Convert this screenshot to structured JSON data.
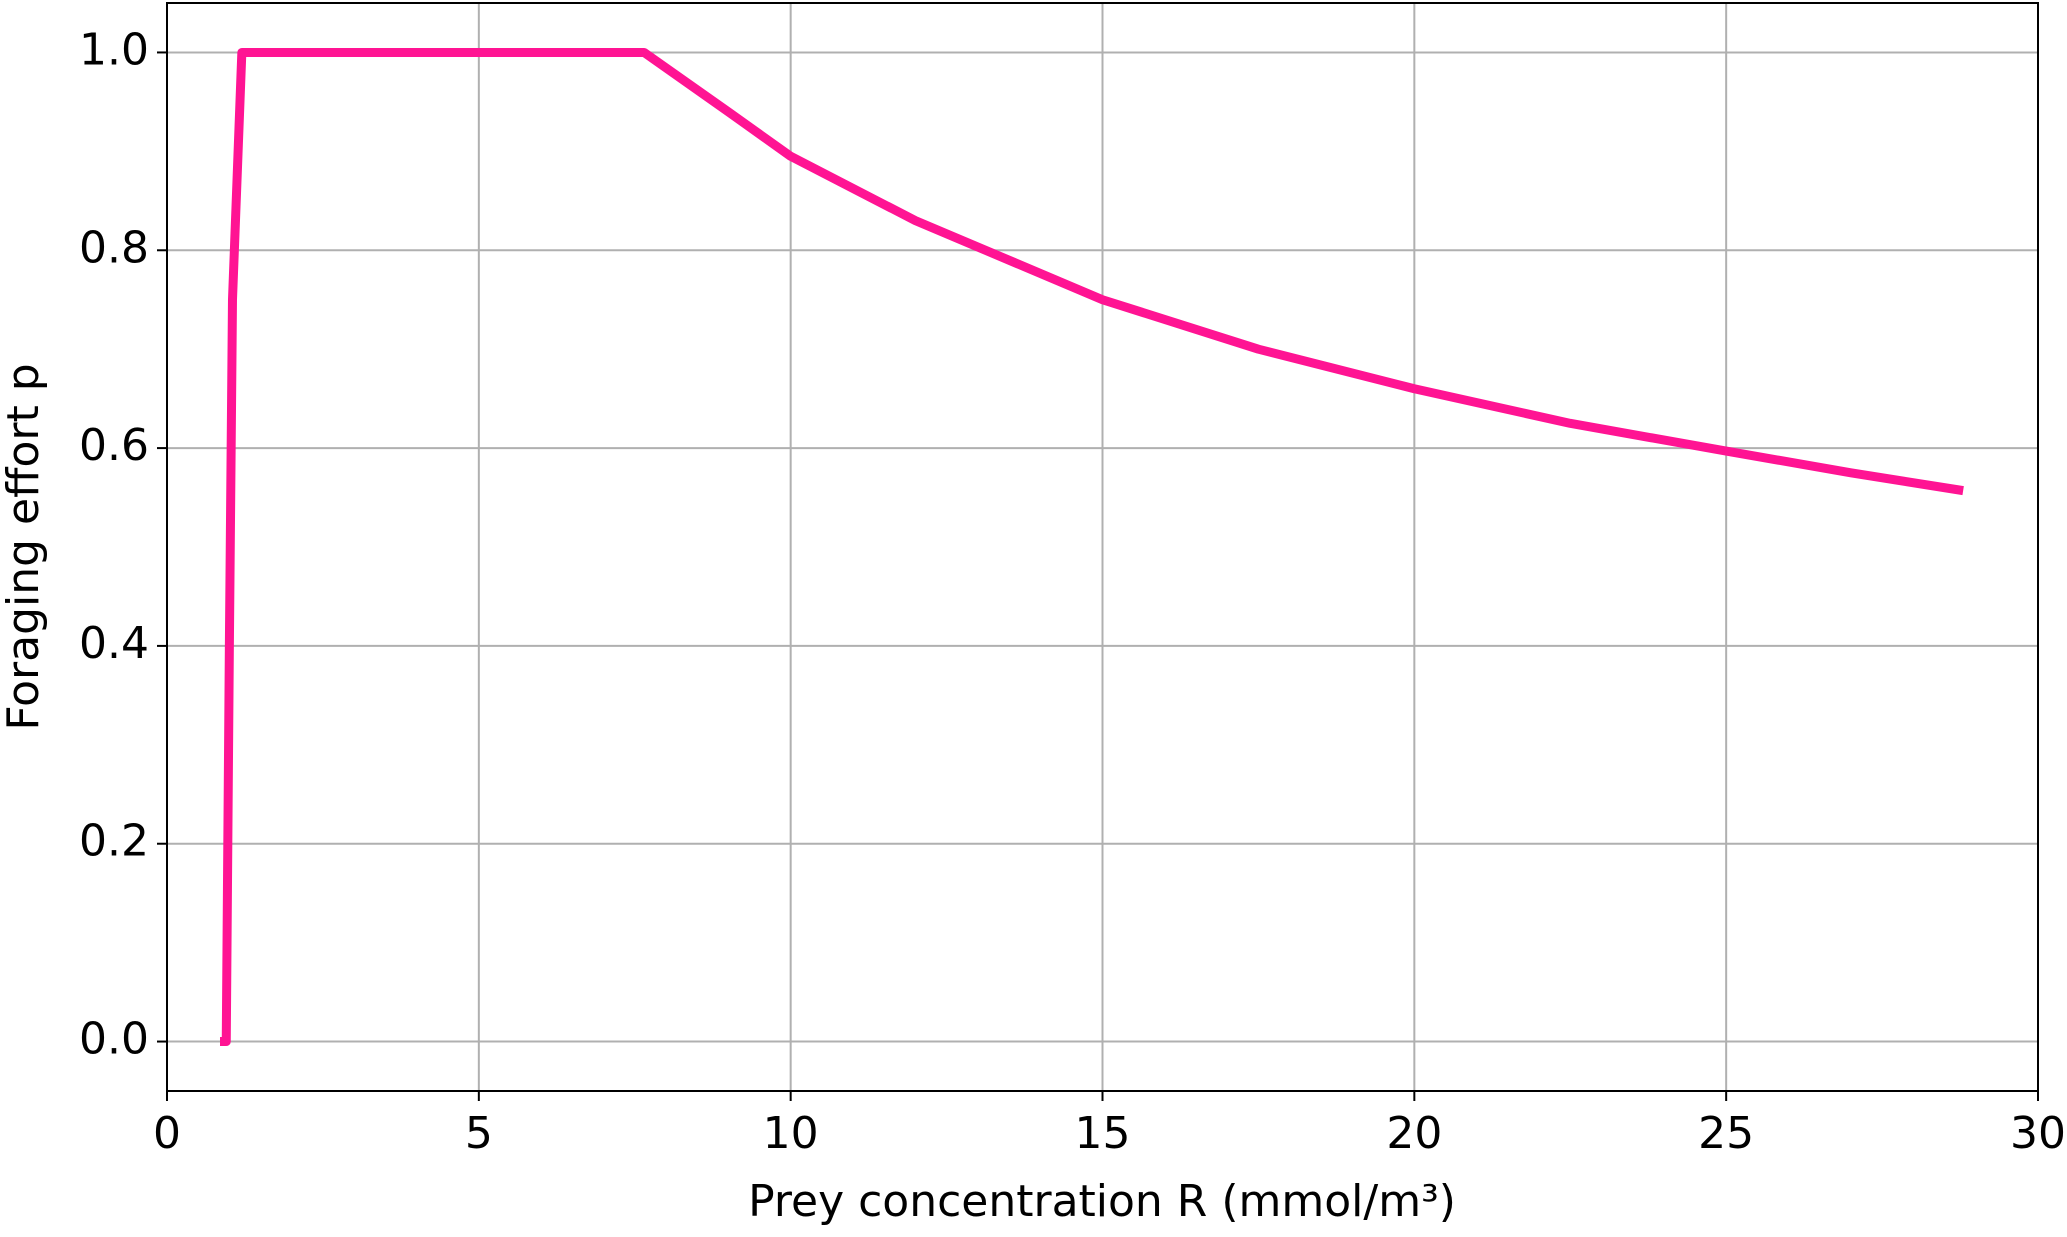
{
  "chart_data": {
    "type": "line",
    "x_label": "Prey concentration R (mmol/m³)",
    "y_label": "Foraging effort p",
    "series": [
      {
        "name": "Foraging effort",
        "color": "#ff1493",
        "x": [
          0.85,
          0.95,
          1.0,
          1.05,
          1.2,
          7.65,
          9,
          10,
          12,
          15,
          17.5,
          20,
          22.5,
          25,
          27,
          28.8
        ],
        "values": [
          0,
          0,
          0.4,
          0.75,
          1.0,
          1.0,
          0.94,
          0.895,
          0.83,
          0.75,
          0.7,
          0.66,
          0.625,
          0.597,
          0.575,
          0.557
        ]
      }
    ],
    "xlim": [
      0,
      30
    ],
    "xticks": [
      0,
      5,
      10,
      15,
      20,
      25,
      30
    ],
    "ylim": [
      -0.05,
      1.05
    ],
    "yticks": [
      {
        "value": 0,
        "label": "0.0"
      },
      0.2,
      0.4,
      0.6,
      0.8,
      {
        "value": 1,
        "label": "1.0"
      }
    ],
    "grid": true
  }
}
